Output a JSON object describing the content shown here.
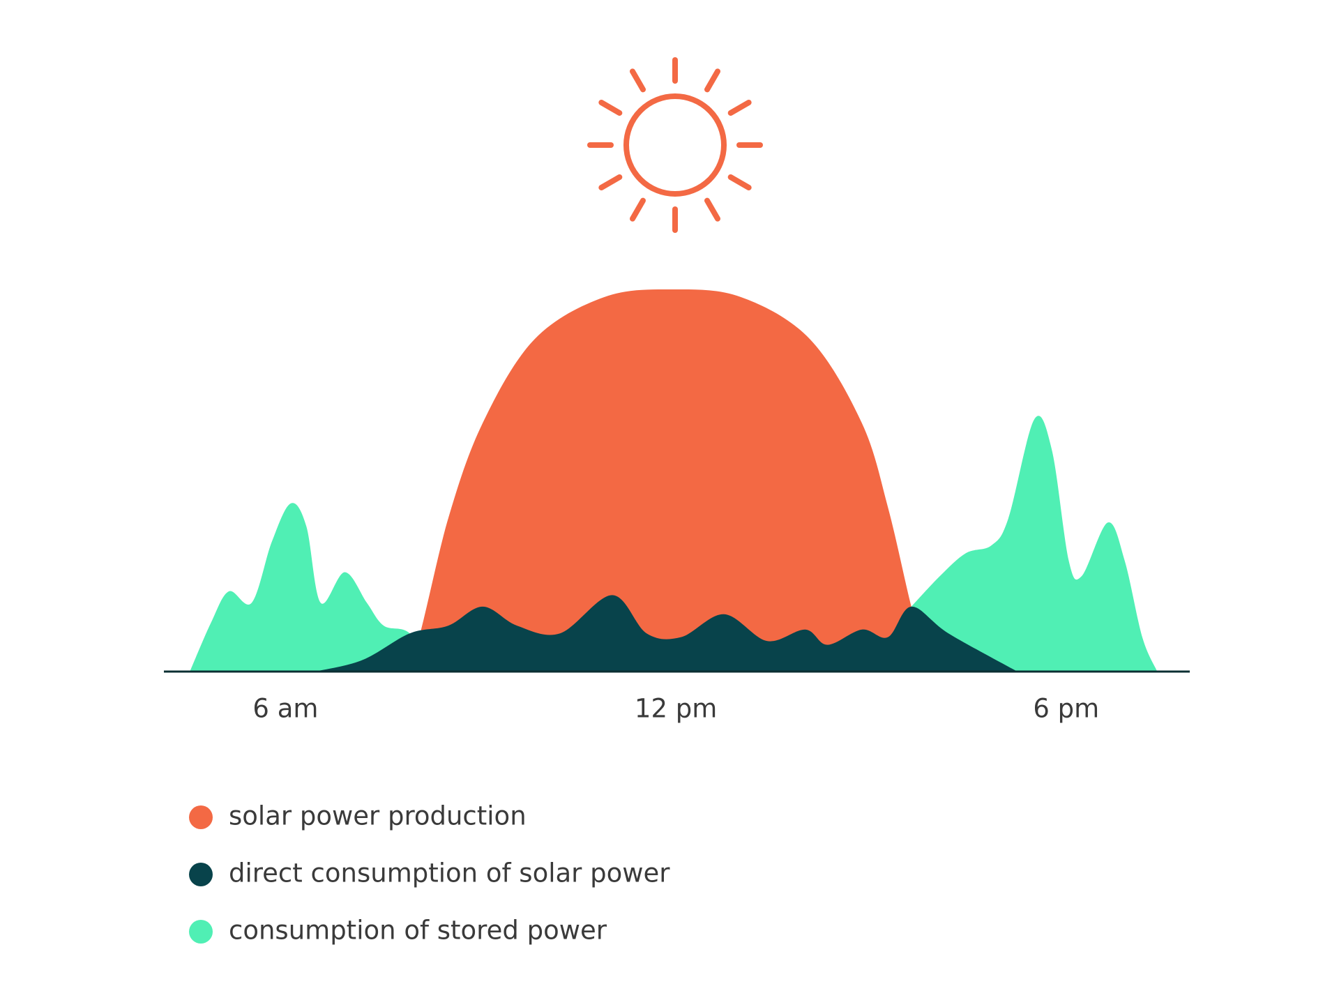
{
  "chart_data": {
    "type": "area",
    "xlim": [
      4.13,
      19.9
    ],
    "xticks": [
      {
        "value": 6,
        "label": "6 am"
      },
      {
        "value": 12,
        "label": "12 pm"
      },
      {
        "value": 18,
        "label": "6 pm"
      }
    ],
    "ylim": [
      0,
      100
    ],
    "legend": "bottom-left",
    "series": [
      {
        "name": "solar power production",
        "color": "#f36944",
        "x": [
          7.7,
          8.0,
          8.5,
          9.03,
          9.83,
          10.9,
          11.95,
          13.0,
          14.06,
          14.86,
          15.26,
          15.62,
          15.9
        ],
        "values": [
          0,
          6,
          40,
          65,
          87,
          98,
          100,
          98,
          87,
          65,
          43,
          17,
          0
        ]
      },
      {
        "name": "direct consumption of solar power",
        "color": "#08434b",
        "x": [
          6.45,
          7.18,
          7.91,
          8.5,
          9.03,
          9.56,
          10.22,
          11.02,
          11.55,
          12.08,
          12.74,
          13.4,
          13.99,
          14.33,
          14.86,
          15.26,
          15.62,
          16.19,
          17.25
        ],
        "values": [
          0,
          3,
          10,
          12,
          17,
          12,
          10,
          20,
          10,
          9,
          15,
          8,
          11,
          7,
          11,
          9,
          17,
          10,
          0
        ]
      },
      {
        "name": "consumption of stored power",
        "color": "#50efb4",
        "x": [
          4.53,
          4.86,
          5.13,
          5.48,
          5.79,
          6.08,
          6.32,
          6.54,
          6.91,
          7.25,
          7.51,
          7.91,
          8.3,
          15.3,
          15.62,
          16.06,
          16.46,
          16.85,
          17.11,
          17.51,
          17.78,
          18.04,
          18.24,
          18.64,
          18.9,
          19.17,
          19.4
        ],
        "values": [
          0,
          13,
          21,
          18,
          34,
          44,
          38,
          18,
          26,
          18,
          12,
          10,
          0,
          null,
          17,
          25,
          31,
          33,
          40,
          66,
          58,
          29,
          25,
          39,
          29,
          9,
          0
        ]
      }
    ]
  }
}
